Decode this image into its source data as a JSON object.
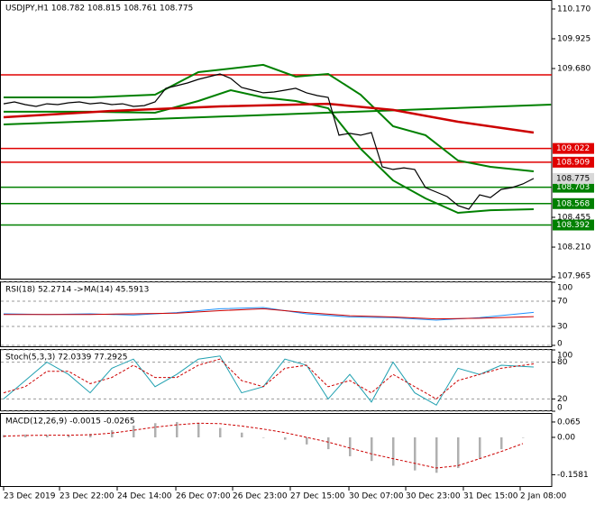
{
  "chart_data": [
    {
      "type": "line",
      "title": "USDJPY,H1 108.782 108.815 108.761 108.775",
      "ylim": [
        107.943,
        110.244
      ],
      "yticks": [
        {
          "value": 110.17,
          "label": "110.170"
        },
        109.925,
        {
          "value": 109.68,
          "label": "109.680"
        },
        108.455,
        {
          "value": 108.21,
          "label": "108.210"
        },
        107.965
      ],
      "grid": false,
      "series": [
        {
          "color": "#008000",
          "width": 2,
          "x": [
            0,
            8,
            14,
            18,
            21,
            24,
            27,
            30,
            33,
            36,
            39,
            42,
            45,
            49
          ],
          "values": [
            109.442,
            109.442,
            109.465,
            109.65,
            109.68,
            109.71,
            109.613,
            109.635,
            109.465,
            109.205,
            109.131,
            108.923,
            108.871,
            108.834
          ]
        },
        {
          "color": "#008000",
          "width": 2,
          "x": [
            0,
            8,
            14,
            18,
            21,
            24,
            27,
            30,
            33,
            36,
            39,
            42,
            45,
            49
          ],
          "values": [
            109.324,
            109.324,
            109.316,
            109.413,
            109.502,
            109.442,
            109.413,
            109.353,
            109.019,
            108.759,
            108.611,
            108.492,
            108.514,
            108.522
          ]
        },
        {
          "color": "#008000",
          "width": 2,
          "x": [
            0,
            50.6
          ],
          "values": [
            109.22,
            109.383
          ]
        },
        {
          "color": "#cc0000",
          "width": 2.5,
          "x": [
            0,
            10,
            20,
            30,
            36,
            42,
            49
          ],
          "values": [
            109.279,
            109.331,
            109.368,
            109.39,
            109.339,
            109.242,
            109.153
          ]
        },
        {
          "color": "#000000",
          "width": 1.2,
          "values": [
            109.39,
            109.405,
            109.383,
            109.368,
            109.39,
            109.383,
            109.398,
            109.405,
            109.39,
            109.398,
            109.383,
            109.39,
            109.368,
            109.375,
            109.405,
            109.517,
            109.539,
            109.561,
            109.591,
            109.613,
            109.635,
            109.598,
            109.524,
            109.502,
            109.48,
            109.487,
            109.502,
            109.517,
            109.48,
            109.457,
            109.442,
            109.131,
            109.146,
            109.131,
            109.153,
            108.871,
            108.849,
            108.863,
            108.849,
            108.7,
            108.663,
            108.626,
            108.552,
            108.522,
            108.641,
            108.618,
            108.685,
            108.7,
            108.73,
            108.775
          ]
        }
      ],
      "levels": [
        {
          "value": 109.628,
          "color": "#e00000",
          "tag": false
        },
        {
          "value": 109.022,
          "color": "#e00000",
          "tag": true
        },
        {
          "value": 108.909,
          "color": "#e00000",
          "tag": true
        },
        {
          "value": 108.703,
          "color": "#008000",
          "tag": true
        },
        {
          "value": 108.568,
          "color": "#008000",
          "tag": true
        },
        {
          "value": 108.392,
          "color": "#008000",
          "tag": true
        }
      ],
      "price_label": 108.775
    },
    {
      "type": "line",
      "title": "RSI(18) 52.2714 ->MA(14) 45.5913",
      "ylim": [
        -2.9,
        101.4
      ],
      "yticks": [
        100,
        70,
        30,
        0
      ],
      "grid": true,
      "series": [
        {
          "color": "#1e90ff",
          "width": 1,
          "x": [
            0,
            4,
            8,
            12,
            16,
            20,
            24,
            28,
            32,
            36,
            40,
            44,
            49
          ],
          "values": [
            50,
            49,
            50,
            48,
            52,
            58,
            60,
            50,
            45,
            44,
            40,
            44,
            52.2714
          ]
        },
        {
          "color": "#cc0000",
          "width": 1,
          "x": [
            0,
            4,
            8,
            12,
            16,
            20,
            24,
            28,
            32,
            36,
            40,
            44,
            49
          ],
          "values": [
            49,
            49,
            49,
            50,
            51,
            55,
            58,
            52,
            47,
            45,
            42,
            43,
            45.5913
          ]
        }
      ]
    },
    {
      "type": "line",
      "title": "Stoch(5,3,3) 72.0339 77.2925",
      "ylim": [
        0,
        101.5
      ],
      "yticks": [
        100,
        80,
        20,
        0
      ],
      "grid": true,
      "series": [
        {
          "color": "#20a0b0",
          "width": 1,
          "x": [
            0,
            2,
            4,
            6,
            8,
            10,
            12,
            14,
            16,
            18,
            20,
            22,
            24,
            26,
            28,
            30,
            32,
            34,
            36,
            38,
            40,
            42,
            44,
            46,
            49
          ],
          "values": [
            20,
            50,
            80,
            60,
            30,
            70,
            85,
            40,
            60,
            85,
            90,
            30,
            40,
            85,
            75,
            20,
            60,
            15,
            80,
            30,
            10,
            70,
            60,
            75,
            72.0339
          ]
        },
        {
          "color": "#cc0000",
          "width": 1,
          "style": "dashed",
          "x": [
            0,
            2,
            4,
            6,
            8,
            10,
            12,
            14,
            16,
            18,
            20,
            22,
            24,
            26,
            28,
            30,
            32,
            34,
            36,
            38,
            40,
            42,
            44,
            46,
            49
          ],
          "values": [
            30,
            40,
            65,
            65,
            45,
            55,
            75,
            55,
            55,
            75,
            85,
            50,
            40,
            70,
            75,
            40,
            50,
            30,
            60,
            40,
            20,
            50,
            60,
            70,
            77.2925
          ]
        }
      ]
    },
    {
      "type": "bar",
      "title": "MACD(12,26,9) -0.0015 -0.0265",
      "ylim": [
        -0.21,
        0.103
      ],
      "yticks": [
        0.065,
        {
          "value": 0,
          "label": "0.00"
        },
        -0.1581
      ],
      "grid": false,
      "series": [
        {
          "type": "bar",
          "color": "#b0b0b0",
          "x": [
            0,
            2,
            4,
            6,
            8,
            10,
            12,
            14,
            16,
            18,
            20,
            22,
            24,
            26,
            28,
            30,
            32,
            34,
            36,
            38,
            40,
            42,
            44,
            46,
            48
          ],
          "values": [
            0.01,
            0.012,
            0.01,
            0.008,
            0.015,
            0.03,
            0.05,
            0.06,
            0.065,
            0.06,
            0.04,
            0.02,
            0.0,
            -0.01,
            -0.03,
            -0.05,
            -0.08,
            -0.1,
            -0.12,
            -0.14,
            -0.15,
            -0.13,
            -0.09,
            -0.05,
            -0.0015
          ]
        },
        {
          "color": "#cc0000",
          "width": 1,
          "style": "dashed",
          "x": [
            0,
            2,
            4,
            6,
            8,
            10,
            12,
            14,
            16,
            18,
            20,
            22,
            24,
            26,
            28,
            30,
            32,
            34,
            36,
            38,
            40,
            42,
            44,
            46,
            48
          ],
          "values": [
            0.005,
            0.008,
            0.009,
            0.009,
            0.011,
            0.018,
            0.03,
            0.043,
            0.053,
            0.06,
            0.058,
            0.048,
            0.035,
            0.02,
            0.0,
            -0.02,
            -0.045,
            -0.07,
            -0.09,
            -0.11,
            -0.13,
            -0.12,
            -0.09,
            -0.06,
            -0.0265
          ]
        }
      ],
      "xticks": [
        {
          "value": 0,
          "label": "23 Dec 2019"
        },
        {
          "value": 5.17,
          "label": "23 Dec 22:00"
        },
        {
          "value": 10.5,
          "label": "24 Dec 14:00"
        },
        {
          "value": 15.92,
          "label": "26 Dec 07:00"
        },
        {
          "value": 21.17,
          "label": "26 Dec 23:00"
        },
        {
          "value": 26.5,
          "label": "27 Dec 15:00"
        },
        {
          "value": 31.92,
          "label": "30 Dec 07:00"
        },
        {
          "value": 37.17,
          "label": "30 Dec 23:00"
        },
        {
          "value": 42.5,
          "label": "31 Dec 15:00"
        },
        {
          "value": 47.75,
          "label": "2 Jan 08:00"
        }
      ]
    }
  ]
}
